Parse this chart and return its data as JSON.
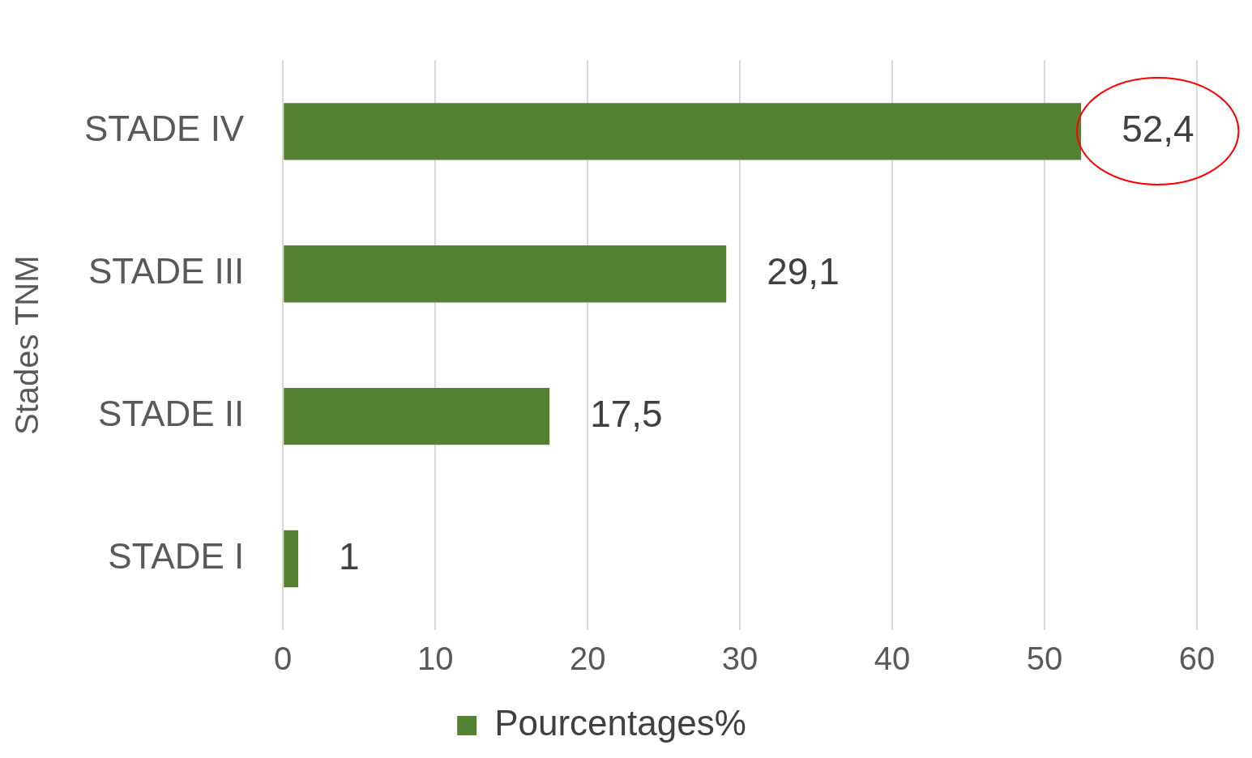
{
  "chart_data": {
    "type": "bar",
    "orientation": "horizontal",
    "ylabel": "Stades TNM",
    "categories": [
      "STADE IV",
      "STADE III",
      "STADE II",
      "STADE I"
    ],
    "series": [
      {
        "name": "Pourcentages%",
        "color": "#548235",
        "values": [
          52.4,
          29.1,
          17.5,
          1
        ],
        "value_labels": [
          "52,4",
          "29,1",
          "17,5",
          "1"
        ]
      }
    ],
    "xlim": [
      0,
      60
    ],
    "xticks": [
      0,
      10,
      20,
      30,
      40,
      50,
      60
    ],
    "grid": "x",
    "legend": "bottom"
  }
}
